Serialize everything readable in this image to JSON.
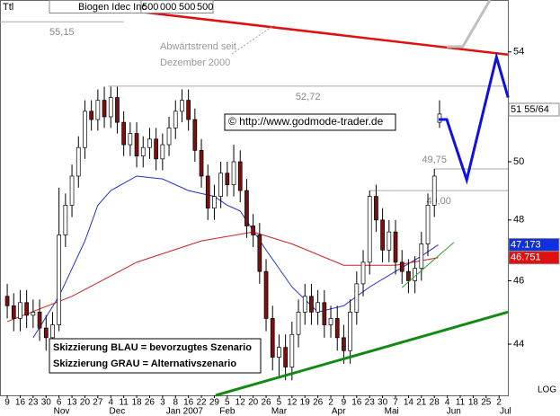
{
  "chart_data": {
    "type": "candlestick",
    "header_label": "Ttl",
    "instrument": "Biogen Idec Inc",
    "header_fields": [
      "500",
      "000",
      "500",
      "500"
    ],
    "scale": "log",
    "xlim": [
      -0.56,
      38.68
    ],
    "ylim": [
      42.45,
      56.0
    ],
    "yticks": [
      44,
      46,
      48,
      50,
      54
    ],
    "xticks": [
      {
        "value": 0,
        "label": "9"
      },
      {
        "value": 1,
        "label": "16"
      },
      {
        "value": 2,
        "label": "23"
      },
      {
        "value": 3,
        "label": "30"
      },
      {
        "value": 4,
        "label": "6"
      },
      {
        "value": 5,
        "label": "13"
      },
      {
        "value": 6,
        "label": "20"
      },
      {
        "value": 7,
        "label": "27"
      },
      {
        "value": 8,
        "label": "4"
      },
      {
        "value": 9,
        "label": "11"
      },
      {
        "value": 10,
        "label": "18"
      },
      {
        "value": 11,
        "label": "26"
      },
      {
        "value": 12,
        "label": "3"
      },
      {
        "value": 13,
        "label": "8"
      },
      {
        "value": 14,
        "label": "16"
      },
      {
        "value": 15,
        "label": "22"
      },
      {
        "value": 16,
        "label": "29"
      },
      {
        "value": 17,
        "label": "5"
      },
      {
        "value": 18,
        "label": "12"
      },
      {
        "value": 19,
        "label": "20"
      },
      {
        "value": 20,
        "label": "26"
      },
      {
        "value": 21,
        "label": "5"
      },
      {
        "value": 22,
        "label": "12"
      },
      {
        "value": 23,
        "label": "19"
      },
      {
        "value": 24,
        "label": "26"
      },
      {
        "value": 25,
        "label": "2"
      },
      {
        "value": 26,
        "label": "9"
      },
      {
        "value": 27,
        "label": "16"
      },
      {
        "value": 28,
        "label": "23"
      },
      {
        "value": 29,
        "label": "30"
      },
      {
        "value": 30,
        "label": "7"
      },
      {
        "value": 31,
        "label": "14"
      },
      {
        "value": 32,
        "label": "21"
      },
      {
        "value": 33,
        "label": "28"
      },
      {
        "value": 34,
        "label": "4"
      },
      {
        "value": 35,
        "label": "11"
      },
      {
        "value": 36,
        "label": "18"
      },
      {
        "value": 37,
        "label": "25"
      },
      {
        "value": 38,
        "label": "2"
      }
    ],
    "months": [
      {
        "value": 4.2,
        "label": "Nov"
      },
      {
        "value": 8.5,
        "label": "Dec"
      },
      {
        "value": 13.7,
        "label": "Jan 2007"
      },
      {
        "value": 17,
        "label": "Feb"
      },
      {
        "value": 21,
        "label": "Mar"
      },
      {
        "value": 25.6,
        "label": "Apr"
      },
      {
        "value": 29.7,
        "label": "Mai"
      },
      {
        "value": 34.5,
        "label": "Jun"
      },
      {
        "value": 38.5,
        "label": "Jul"
      }
    ],
    "scale_label": "LOG",
    "candles": {
      "up_color": "#ffffff",
      "down_color": "#7a1010",
      "x": [
        0,
        0.5,
        1,
        1.5,
        2,
        2.5,
        3,
        3.5,
        4,
        4.5,
        5,
        5.5,
        6,
        6.5,
        7,
        7.5,
        8,
        8.5,
        9,
        9.5,
        10,
        10.5,
        11,
        11.5,
        12,
        12.5,
        13,
        13.5,
        14,
        14.5,
        15,
        15.5,
        16,
        16.5,
        17,
        17.5,
        18,
        18.5,
        19,
        19.5,
        20,
        20.5,
        21,
        21.5,
        22,
        22.5,
        23,
        23.5,
        24,
        24.5,
        25,
        25.5,
        26,
        26.5,
        27,
        27.5,
        28,
        28.5,
        29,
        29.5,
        30,
        30.5,
        31,
        31.5,
        32,
        32.5,
        33,
        33.4
      ],
      "open": [
        45.5,
        45.2,
        44.8,
        45.3,
        44.9,
        45.0,
        44.5,
        44.2,
        44.6,
        47.5,
        48.5,
        49.5,
        50.5,
        51.8,
        51.5,
        52.2,
        51.6,
        52.3,
        51.4,
        50.6,
        51.0,
        50.2,
        50.5,
        50.8,
        50.1,
        50.6,
        51.2,
        51.8,
        52.2,
        51.5,
        50.4,
        49.5,
        48.4,
        48.8,
        49.6,
        49.2,
        50.0,
        49.0,
        47.8,
        47.5,
        46.3,
        44.8,
        43.6,
        43.9,
        43.3,
        44.3,
        45.0,
        45.5,
        45.0,
        45.3,
        44.6,
        44.8,
        44.2,
        43.8,
        45.0,
        45.9,
        46.6,
        48.8,
        48.0,
        47.0,
        47.6,
        46.6,
        46.3,
        46.0,
        46.4,
        47.2,
        48.5,
        51.4
      ],
      "high": [
        45.9,
        45.6,
        45.7,
        45.7,
        45.4,
        45.4,
        44.9,
        45.0,
        49.1,
        48.9,
        49.9,
        50.9,
        52.2,
        52.2,
        52.6,
        52.7,
        52.7,
        52.7,
        51.8,
        51.4,
        51.4,
        50.9,
        51.2,
        51.2,
        51.0,
        51.6,
        52.2,
        52.6,
        52.6,
        51.9,
        50.8,
        49.9,
        49.2,
        50.0,
        50.0,
        50.6,
        50.4,
        49.4,
        48.2,
        47.9,
        46.7,
        45.2,
        44.3,
        44.3,
        44.7,
        45.4,
        45.9,
        45.9,
        45.7,
        45.7,
        45.2,
        45.2,
        44.6,
        45.4,
        46.3,
        47.0,
        49.0,
        49.2,
        48.4,
        48.0,
        48.0,
        47.0,
        46.7,
        46.8,
        47.6,
        48.9,
        49.75,
        52.2
      ],
      "low": [
        44.8,
        44.4,
        44.4,
        44.5,
        44.5,
        44.1,
        43.8,
        43.9,
        44.4,
        47.1,
        48.1,
        49.1,
        50.1,
        51.1,
        51.1,
        51.2,
        51.2,
        51.0,
        50.2,
        50.2,
        49.8,
        49.8,
        50.1,
        49.7,
        49.7,
        50.2,
        50.8,
        51.4,
        51.1,
        50.0,
        49.1,
        48.0,
        48.0,
        48.4,
        48.8,
        48.8,
        48.6,
        47.4,
        47.1,
        45.9,
        44.4,
        43.2,
        43.0,
        42.9,
        42.9,
        43.9,
        44.6,
        44.6,
        44.6,
        44.2,
        44.2,
        43.8,
        43.4,
        43.4,
        44.6,
        45.5,
        46.2,
        47.6,
        46.6,
        46.6,
        46.2,
        45.9,
        45.6,
        45.6,
        46.0,
        46.8,
        48.1,
        51.2
      ],
      "close": [
        45.2,
        44.8,
        45.3,
        44.9,
        45.0,
        44.5,
        44.2,
        44.6,
        47.5,
        48.5,
        49.5,
        50.5,
        51.8,
        51.5,
        52.2,
        51.6,
        52.3,
        51.4,
        50.6,
        51.0,
        50.2,
        50.5,
        50.8,
        50.1,
        50.6,
        51.2,
        51.8,
        52.2,
        51.5,
        50.4,
        49.5,
        48.4,
        48.8,
        49.6,
        49.2,
        50.0,
        49.0,
        47.8,
        47.5,
        46.3,
        44.8,
        43.6,
        43.9,
        43.3,
        44.3,
        45.0,
        45.5,
        45.0,
        45.3,
        44.6,
        44.8,
        44.2,
        43.8,
        45.0,
        45.9,
        46.6,
        48.8,
        48.0,
        47.0,
        47.6,
        46.6,
        46.3,
        46.0,
        46.4,
        47.2,
        48.5,
        49.5,
        51.7
      ]
    },
    "lines": [
      {
        "color": "#2030d0",
        "width": 1,
        "x": [
          2,
          4,
          6,
          7,
          8,
          10,
          12,
          14,
          16,
          17,
          18,
          20,
          22,
          24,
          26,
          28,
          30,
          32,
          33.3
        ],
        "values": [
          44.2,
          45.5,
          47.3,
          48.5,
          49.0,
          49.5,
          49.4,
          49.0,
          48.8,
          48.5,
          48.3,
          47.0,
          45.8,
          45.0,
          45.2,
          45.8,
          46.3,
          46.8,
          47.173
        ]
      },
      {
        "color": "#d02020",
        "width": 1,
        "x": [
          0,
          5,
          10,
          15,
          19,
          22,
          26,
          30,
          33.3
        ],
        "values": [
          44.7,
          45.5,
          46.6,
          47.3,
          47.6,
          47.2,
          46.5,
          46.5,
          46.751
        ]
      },
      {
        "color": "#e01010",
        "width": 2.5,
        "x": [
          9.2,
          38.68
        ],
        "values": [
          55.6,
          53.9
        ]
      },
      {
        "color": "#138a13",
        "width": 3,
        "x": [
          16.1,
          38.68
        ],
        "values": [
          42.45,
          45.0
        ]
      },
      {
        "color": "#2aa02a",
        "width": 1,
        "x": [
          30.5,
          34.5
        ],
        "values": [
          45.78,
          47.25
        ]
      },
      {
        "color": "#1010e0",
        "width": 3,
        "x": [
          33.33,
          33.96,
          35.5,
          37.8,
          38.7
        ],
        "values": [
          51.5,
          51.5,
          49.37,
          53.8,
          52.3
        ]
      },
      {
        "color": "#c0c0c0",
        "width": 3,
        "x": [
          33.96,
          35.2,
          37.3
        ],
        "values": [
          54.2,
          54.2,
          56.0
        ]
      }
    ],
    "levels": [
      {
        "value": 55.15,
        "label": "55,15",
        "from": -0.56,
        "to": 9
      },
      {
        "value": 52.72,
        "label": "52,72",
        "from": 7.8,
        "to": 38.68
      },
      {
        "value": 49.75,
        "label": "49,75",
        "from": 33,
        "to": 38.68
      },
      {
        "value": 49.0,
        "label": "49,00",
        "from": 28,
        "to": 38.68
      }
    ],
    "price_boxes": [
      {
        "value": 51.859,
        "label": "51 55/64",
        "color": "#ffffff",
        "text_color": "#000000"
      },
      {
        "value": 47.173,
        "label": "47.173",
        "color": "#1030e0",
        "text_color": "#ffffff"
      },
      {
        "value": 46.751,
        "label": "46.751",
        "color": "#e01010",
        "text_color": "#ffffff"
      }
    ],
    "trend_note": [
      "Abwärtstrend seit",
      "Dezember 2000"
    ],
    "copyright": "© http://www.godmode-trader.de",
    "legend": [
      "Skizzierung BLAU = bevorzugtes Szenario",
      "Skizzierung GRAU = Alternativszenario"
    ]
  }
}
